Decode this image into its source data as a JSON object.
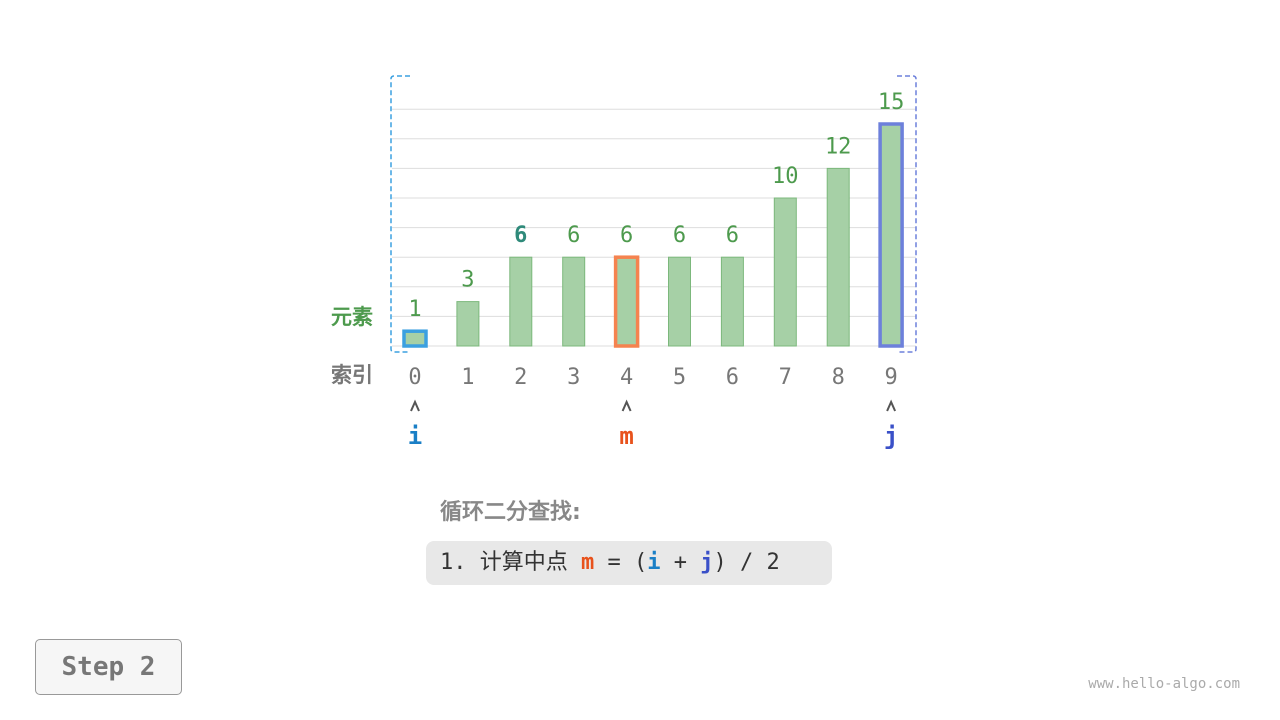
{
  "diagram": {
    "row_labels": {
      "elements": "元素",
      "indices": "索引"
    },
    "values": [
      1,
      3,
      6,
      6,
      6,
      6,
      6,
      10,
      12,
      15
    ],
    "indices": [
      "0",
      "1",
      "2",
      "3",
      "4",
      "5",
      "6",
      "7",
      "8",
      "9"
    ],
    "pointers": [
      {
        "name": "i",
        "index": 0,
        "color": "#1a7fc6"
      },
      {
        "name": "m",
        "index": 4,
        "color": "#e8521c"
      },
      {
        "name": "j",
        "index": 9,
        "color": "#3a50c8"
      }
    ],
    "highlighted_value_index": 2,
    "search_range": [
      0,
      9
    ],
    "colors": {
      "bar": "#a6d0a6",
      "bar_border": "#7cb87c",
      "value_text": "#4d9a4d",
      "highlight_value": "#2f8a7a",
      "i_box": "#3ba0e0",
      "m_box": "#f5834f",
      "j_box": "#6d80db",
      "range_bracket_left": "#3ba0e0",
      "range_bracket_right": "#6d80db"
    }
  },
  "title": "循环二分查找:",
  "formula": {
    "prefix": "1. 计算中点 ",
    "m": "m",
    "eq": " = (",
    "i": "i",
    "plus": " + ",
    "j": "j",
    "suffix": ") / 2"
  },
  "step_label": "Step 2",
  "watermark": "www.hello-algo.com"
}
